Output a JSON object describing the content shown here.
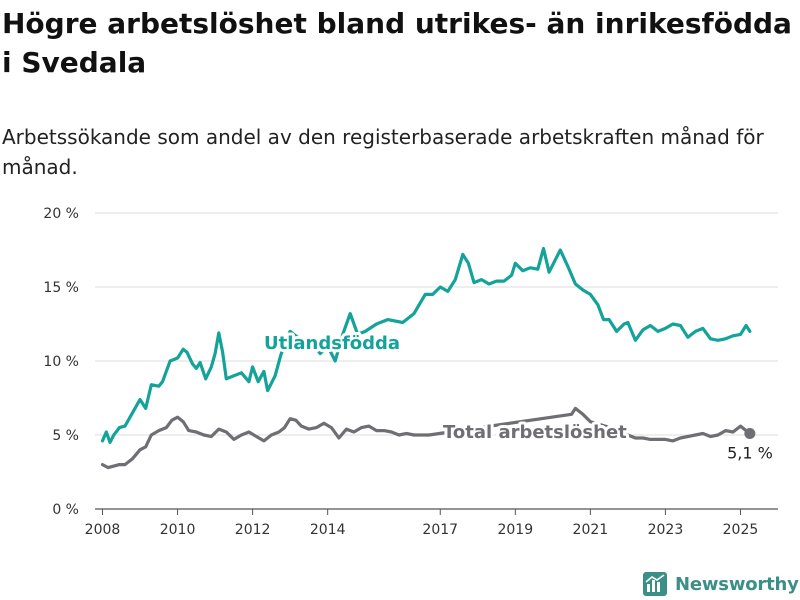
{
  "title": "Högre arbetslöshet bland utrikes- än inrikesfödda i Svedala",
  "subtitle": "Arbetssökande som andel av den registerbaserade arbetskraften månad för månad.",
  "brand": {
    "name": "Newsworthy",
    "icon": "newsworthy-logo-icon",
    "color": "#3b8f86"
  },
  "chart_data": {
    "type": "line",
    "x_unit": "year",
    "xlim": [
      2007.8,
      2026.0
    ],
    "ylim": [
      0,
      20
    ],
    "yticks": [
      0,
      5,
      10,
      15,
      20
    ],
    "ytick_labels": [
      "0 %",
      "5 %",
      "10 %",
      "15 %",
      "20 %"
    ],
    "xticks": [
      2008,
      2010,
      2012,
      2014,
      2017,
      2019,
      2021,
      2023,
      2025
    ],
    "xtick_labels": [
      "2008",
      "2010",
      "2012",
      "2014",
      "2017",
      "2019",
      "2021",
      "2023",
      "2025"
    ],
    "grid": true,
    "series": [
      {
        "name": "Utlandsfödda",
        "color": "#14a39a",
        "x": [
          2008.0,
          2008.1,
          2008.2,
          2008.3,
          2008.45,
          2008.6,
          2008.8,
          2009.0,
          2009.15,
          2009.3,
          2009.5,
          2009.6,
          2009.8,
          2010.0,
          2010.15,
          2010.25,
          2010.4,
          2010.5,
          2010.6,
          2010.75,
          2010.9,
          2011.0,
          2011.1,
          2011.2,
          2011.3,
          2011.5,
          2011.7,
          2011.9,
          2012.0,
          2012.15,
          2012.3,
          2012.4,
          2012.5,
          2012.6,
          2012.75,
          2012.9,
          2013.0,
          2013.2,
          2013.4,
          2013.6,
          2013.8,
          2014.0,
          2014.2,
          2014.4,
          2014.6,
          2014.8,
          2015.0,
          2015.3,
          2015.6,
          2016.0,
          2016.3,
          2016.6,
          2016.8,
          2017.0,
          2017.2,
          2017.4,
          2017.6,
          2017.75,
          2017.9,
          2018.1,
          2018.3,
          2018.5,
          2018.7,
          2018.9,
          2019.0,
          2019.2,
          2019.4,
          2019.6,
          2019.75,
          2019.9,
          2020.0,
          2020.2,
          2020.4,
          2020.6,
          2020.8,
          2021.0,
          2021.2,
          2021.35,
          2021.5,
          2021.7,
          2021.9,
          2022.0,
          2022.2,
          2022.4,
          2022.6,
          2022.8,
          2023.0,
          2023.2,
          2023.4,
          2023.6,
          2023.8,
          2024.0,
          2024.2,
          2024.4,
          2024.6,
          2024.8,
          2025.0,
          2025.15,
          2025.25
        ],
        "values": [
          4.6,
          5.2,
          4.5,
          5.0,
          5.5,
          5.6,
          6.5,
          7.4,
          6.8,
          8.4,
          8.3,
          8.6,
          10.0,
          10.2,
          10.8,
          10.6,
          9.8,
          9.5,
          9.9,
          8.8,
          9.6,
          10.5,
          11.9,
          10.6,
          8.8,
          9.0,
          9.2,
          8.6,
          9.6,
          8.6,
          9.3,
          8.0,
          8.5,
          9.0,
          10.4,
          11.5,
          12.0,
          11.6,
          11.0,
          11.2,
          10.5,
          11.0,
          10.0,
          11.8,
          13.2,
          11.8,
          12.0,
          12.5,
          12.8,
          12.6,
          13.2,
          14.5,
          14.5,
          15.0,
          14.7,
          15.5,
          17.2,
          16.6,
          15.3,
          15.5,
          15.2,
          15.4,
          15.4,
          15.8,
          16.6,
          16.1,
          16.3,
          16.2,
          17.6,
          16.0,
          16.5,
          17.5,
          16.4,
          15.2,
          14.8,
          14.5,
          13.8,
          12.8,
          12.8,
          12.0,
          12.5,
          12.6,
          11.4,
          12.1,
          12.4,
          12.0,
          12.2,
          12.5,
          12.4,
          11.6,
          12.0,
          12.2,
          11.5,
          11.4,
          11.5,
          11.7,
          11.8,
          12.4,
          12.0
        ],
        "label": "Utlandsfödda"
      },
      {
        "name": "Total arbetslöshet",
        "color": "#6e6e73",
        "x": [
          2008.0,
          2008.15,
          2008.3,
          2008.45,
          2008.6,
          2008.8,
          2009.0,
          2009.15,
          2009.3,
          2009.5,
          2009.7,
          2009.85,
          2010.0,
          2010.15,
          2010.3,
          2010.5,
          2010.7,
          2010.9,
          2011.1,
          2011.3,
          2011.5,
          2011.7,
          2011.9,
          2012.1,
          2012.3,
          2012.5,
          2012.7,
          2012.85,
          2013.0,
          2013.15,
          2013.3,
          2013.5,
          2013.7,
          2013.9,
          2014.1,
          2014.3,
          2014.5,
          2014.7,
          2014.9,
          2015.1,
          2015.3,
          2015.5,
          2015.7,
          2015.9,
          2016.1,
          2016.3,
          2016.5,
          2016.7,
          2020.5,
          2020.6,
          2020.8,
          2021.0,
          2021.4,
          2021.7,
          2022.0,
          2022.2,
          2022.4,
          2022.6,
          2022.8,
          2023.0,
          2023.2,
          2023.4,
          2023.6,
          2023.8,
          2024.0,
          2024.2,
          2024.4,
          2024.6,
          2024.8,
          2025.0,
          2025.15,
          2025.25
        ],
        "values": [
          3.0,
          2.8,
          2.9,
          3.0,
          3.0,
          3.4,
          4.0,
          4.2,
          5.0,
          5.3,
          5.5,
          6.0,
          6.2,
          5.9,
          5.3,
          5.2,
          5.0,
          4.9,
          5.4,
          5.2,
          4.7,
          5.0,
          5.2,
          4.9,
          4.6,
          5.0,
          5.2,
          5.5,
          6.1,
          6.0,
          5.6,
          5.4,
          5.5,
          5.8,
          5.5,
          4.8,
          5.4,
          5.2,
          5.5,
          5.6,
          5.3,
          5.3,
          5.2,
          5.0,
          5.1,
          5.0,
          5.0,
          5.0,
          6.4,
          6.8,
          6.4,
          5.9,
          5.6,
          5.3,
          5.0,
          4.8,
          4.8,
          4.7,
          4.7,
          4.7,
          4.6,
          4.8,
          4.9,
          5.0,
          5.1,
          4.9,
          5.0,
          5.3,
          5.2,
          5.6,
          5.3,
          5.1
        ],
        "label": "Total arbetslöshet"
      }
    ],
    "end_label": "5,1 %",
    "end_value": 5.1
  }
}
